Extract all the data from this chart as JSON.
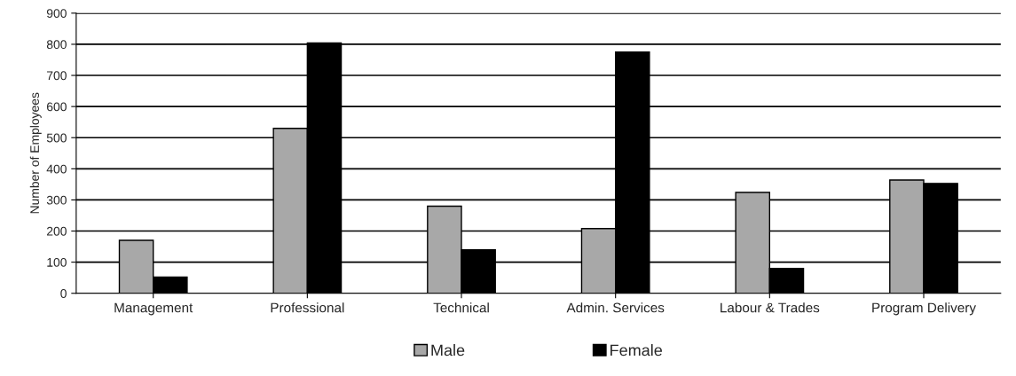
{
  "chart_data": {
    "type": "bar",
    "ylabel": "Number of Employees",
    "categories": [
      "Management",
      "Professional",
      "Technical",
      "Admin. Services",
      "Labour & Trades",
      "Program Delivery"
    ],
    "series": [
      {
        "name": "Male",
        "color": "#a8a8a8",
        "values": [
          170,
          530,
          280,
          208,
          324,
          364
        ]
      },
      {
        "name": "Female",
        "color": "#000000",
        "values": [
          52,
          804,
          140,
          775,
          80,
          353
        ]
      }
    ],
    "ylim": [
      0,
      900
    ],
    "yticks": [
      0,
      100,
      200,
      300,
      400,
      500,
      600,
      700,
      800,
      900
    ],
    "grid": "y",
    "legend": "bottom"
  }
}
